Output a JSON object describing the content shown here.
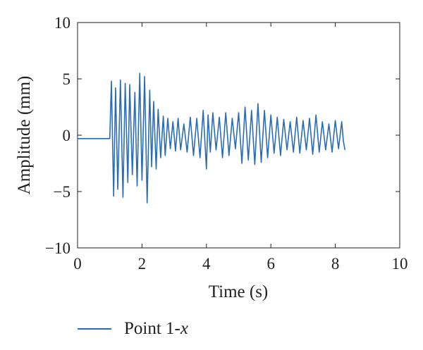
{
  "chart_data": {
    "type": "line",
    "xlabel": "Time (s)",
    "ylabel": "Amplitude (mm)",
    "xlim": [
      0,
      10
    ],
    "ylim": [
      -10,
      10
    ],
    "xticks": [
      0,
      2,
      4,
      6,
      8,
      10
    ],
    "yticks": [
      10,
      5,
      0,
      -5,
      -10
    ],
    "ytick_labels": [
      "10",
      "5",
      "0",
      "−5",
      "−10"
    ],
    "grid": false,
    "legend_position": "bottom-left",
    "series": [
      {
        "name": "Point 1-x",
        "color": "#2a6cb5",
        "x": [
          0,
          0.95,
          1.0,
          1.05,
          1.12,
          1.18,
          1.25,
          1.33,
          1.41,
          1.48,
          1.56,
          1.62,
          1.7,
          1.78,
          1.85,
          1.93,
          2.0,
          2.08,
          2.16,
          2.24,
          2.3,
          2.36,
          2.44,
          2.5,
          2.58,
          2.66,
          2.72,
          2.8,
          2.88,
          2.96,
          3.04,
          3.12,
          3.2,
          3.3,
          3.4,
          3.5,
          3.6,
          3.7,
          3.8,
          3.9,
          4.0,
          4.05,
          4.12,
          4.2,
          4.3,
          4.4,
          4.5,
          4.6,
          4.7,
          4.8,
          4.9,
          5.0,
          5.1,
          5.2,
          5.3,
          5.4,
          5.5,
          5.6,
          5.7,
          5.8,
          5.9,
          6.0,
          6.1,
          6.2,
          6.3,
          6.4,
          6.5,
          6.6,
          6.7,
          6.8,
          6.9,
          7.0,
          7.1,
          7.2,
          7.3,
          7.4,
          7.5,
          7.6,
          7.7,
          7.8,
          7.9,
          8.0,
          8.1,
          8.2,
          8.25,
          8.3
        ],
        "y": [
          -0.3,
          -0.3,
          -0.3,
          4.8,
          -5.4,
          4.2,
          -4.8,
          4.9,
          -5.5,
          4.6,
          -4.2,
          4.5,
          -3.5,
          3.8,
          -4.5,
          5.5,
          -4.0,
          5.2,
          -6.0,
          4.0,
          -2.8,
          3.0,
          -3.0,
          2.3,
          -2.0,
          1.7,
          -1.8,
          1.5,
          -1.2,
          1.2,
          -1.4,
          1.5,
          -1.3,
          1.0,
          -1.5,
          1.6,
          -1.8,
          1.5,
          -2.0,
          2.2,
          -3.0,
          1.8,
          -1.5,
          2.0,
          -1.3,
          1.6,
          -2.0,
          2.0,
          -1.8,
          1.5,
          -1.2,
          2.0,
          -2.5,
          2.5,
          -2.2,
          2.2,
          -2.6,
          2.8,
          -2.4,
          2.2,
          -2.0,
          1.8,
          -1.6,
          1.6,
          -1.8,
          1.4,
          -1.3,
          1.2,
          -1.5,
          1.6,
          -1.6,
          1.3,
          -1.3,
          1.5,
          -1.7,
          1.8,
          -1.5,
          1.2,
          -1.3,
          1.0,
          -1.5,
          1.3,
          -1.2,
          1.2,
          -0.5,
          -1.3
        ]
      }
    ]
  }
}
